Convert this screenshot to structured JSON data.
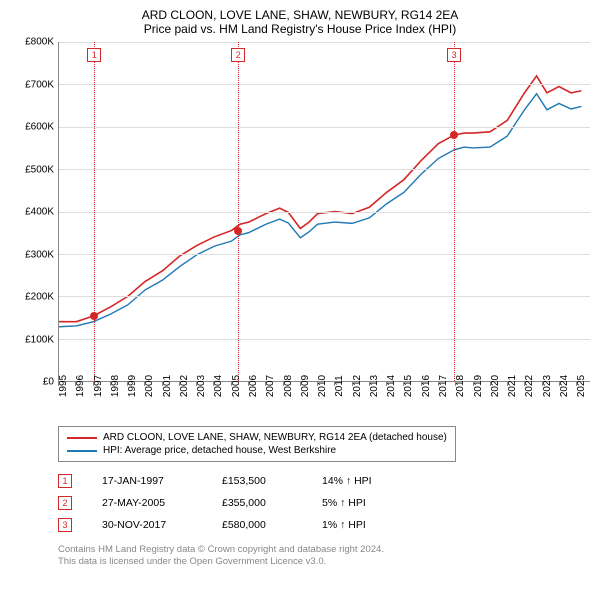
{
  "title": "ARD CLOON, LOVE LANE, SHAW, NEWBURY, RG14 2EA",
  "subtitle": "Price paid vs. HM Land Registry's House Price Index (HPI)",
  "chart": {
    "type": "line",
    "background_color": "#ffffff",
    "grid_color": "#dddddd",
    "axis_color": "#888888",
    "ylim": [
      0,
      800000
    ],
    "ytick_step": 100000,
    "yticks": [
      "£0",
      "£100K",
      "£200K",
      "£300K",
      "£400K",
      "£500K",
      "£600K",
      "£700K",
      "£800K"
    ],
    "xlim": [
      1995,
      2025.8
    ],
    "xticks": [
      1995,
      1996,
      1997,
      1998,
      1999,
      2000,
      2001,
      2002,
      2003,
      2004,
      2005,
      2006,
      2007,
      2008,
      2009,
      2010,
      2011,
      2012,
      2013,
      2014,
      2015,
      2016,
      2017,
      2018,
      2019,
      2020,
      2021,
      2022,
      2023,
      2024,
      2025
    ],
    "series": [
      {
        "name": "ARD CLOON, LOVE LANE, SHAW, NEWBURY, RG14 2EA (detached house)",
        "color": "#d62728",
        "line_width": 1.6,
        "data": [
          [
            1995,
            140000
          ],
          [
            1996,
            140000
          ],
          [
            1997,
            153500
          ],
          [
            1998,
            175000
          ],
          [
            1999,
            200000
          ],
          [
            2000,
            235000
          ],
          [
            2001,
            260000
          ],
          [
            2002,
            295000
          ],
          [
            2003,
            320000
          ],
          [
            2004,
            340000
          ],
          [
            2005,
            355000
          ],
          [
            2005.5,
            370000
          ],
          [
            2006,
            375000
          ],
          [
            2007,
            395000
          ],
          [
            2007.8,
            408000
          ],
          [
            2008.3,
            398000
          ],
          [
            2009,
            360000
          ],
          [
            2009.5,
            375000
          ],
          [
            2010,
            395000
          ],
          [
            2011,
            400000
          ],
          [
            2012,
            395000
          ],
          [
            2013,
            410000
          ],
          [
            2014,
            445000
          ],
          [
            2015,
            475000
          ],
          [
            2016,
            520000
          ],
          [
            2017,
            560000
          ],
          [
            2017.9,
            580000
          ],
          [
            2018.5,
            585000
          ],
          [
            2019,
            585000
          ],
          [
            2020,
            588000
          ],
          [
            2021,
            615000
          ],
          [
            2022,
            680000
          ],
          [
            2022.7,
            720000
          ],
          [
            2023.3,
            680000
          ],
          [
            2024,
            695000
          ],
          [
            2024.7,
            680000
          ],
          [
            2025.3,
            685000
          ]
        ]
      },
      {
        "name": "HPI: Average price, detached house, West Berkshire",
        "color": "#1f77b4",
        "line_width": 1.4,
        "data": [
          [
            1995,
            128000
          ],
          [
            1996,
            130000
          ],
          [
            1997,
            140000
          ],
          [
            1998,
            158000
          ],
          [
            1999,
            180000
          ],
          [
            2000,
            215000
          ],
          [
            2001,
            238000
          ],
          [
            2002,
            270000
          ],
          [
            2003,
            298000
          ],
          [
            2004,
            318000
          ],
          [
            2005,
            330000
          ],
          [
            2005.5,
            345000
          ],
          [
            2006,
            350000
          ],
          [
            2007,
            370000
          ],
          [
            2007.8,
            382000
          ],
          [
            2008.3,
            373000
          ],
          [
            2009,
            338000
          ],
          [
            2009.5,
            352000
          ],
          [
            2010,
            370000
          ],
          [
            2011,
            375000
          ],
          [
            2012,
            372000
          ],
          [
            2013,
            385000
          ],
          [
            2014,
            418000
          ],
          [
            2015,
            445000
          ],
          [
            2016,
            488000
          ],
          [
            2017,
            525000
          ],
          [
            2017.9,
            545000
          ],
          [
            2018.5,
            552000
          ],
          [
            2019,
            550000
          ],
          [
            2020,
            552000
          ],
          [
            2021,
            578000
          ],
          [
            2022,
            640000
          ],
          [
            2022.7,
            678000
          ],
          [
            2023.3,
            640000
          ],
          [
            2024,
            655000
          ],
          [
            2024.7,
            642000
          ],
          [
            2025.3,
            648000
          ]
        ]
      }
    ],
    "markers": [
      {
        "n": "1",
        "x": 1997.05,
        "y": 153500,
        "color": "#d62728"
      },
      {
        "n": "2",
        "x": 2005.4,
        "y": 355000,
        "color": "#d62728"
      },
      {
        "n": "3",
        "x": 2017.92,
        "y": 580000,
        "color": "#d62728"
      }
    ]
  },
  "legend": [
    {
      "color": "#d62728",
      "label": "ARD CLOON, LOVE LANE, SHAW, NEWBURY, RG14 2EA (detached house)"
    },
    {
      "color": "#1f77b4",
      "label": "HPI: Average price, detached house, West Berkshire"
    }
  ],
  "sales": [
    {
      "n": "1",
      "date": "17-JAN-1997",
      "price": "£153,500",
      "diff": "14% ↑ HPI",
      "color": "#d62728"
    },
    {
      "n": "2",
      "date": "27-MAY-2005",
      "price": "£355,000",
      "diff": "5% ↑ HPI",
      "color": "#d62728"
    },
    {
      "n": "3",
      "date": "30-NOV-2017",
      "price": "£580,000",
      "diff": "1% ↑ HPI",
      "color": "#d62728"
    }
  ],
  "footnote_l1": "Contains HM Land Registry data © Crown copyright and database right 2024.",
  "footnote_l2": "This data is licensed under the Open Government Licence v3.0."
}
